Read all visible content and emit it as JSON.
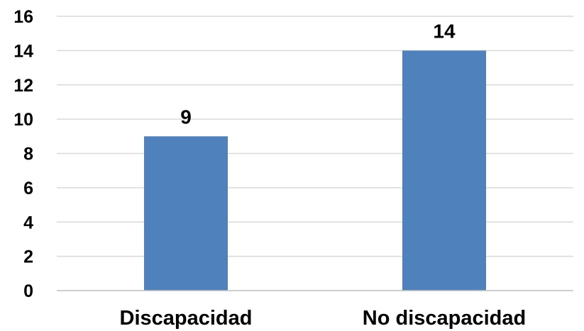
{
  "chart_data": {
    "type": "bar",
    "categories": [
      "Discapacidad",
      "No discapacidad"
    ],
    "values": [
      9,
      14
    ],
    "data_labels": [
      "9",
      "14"
    ],
    "y_ticks": [
      "0",
      "2",
      "4",
      "6",
      "8",
      "10",
      "12",
      "14",
      "16"
    ],
    "ylim": [
      0,
      16
    ],
    "grid": true,
    "legend": "none",
    "bar_color": "#4f81bd",
    "grid_color": "#d9d9d9",
    "axis_color": "#bfbfbf"
  }
}
